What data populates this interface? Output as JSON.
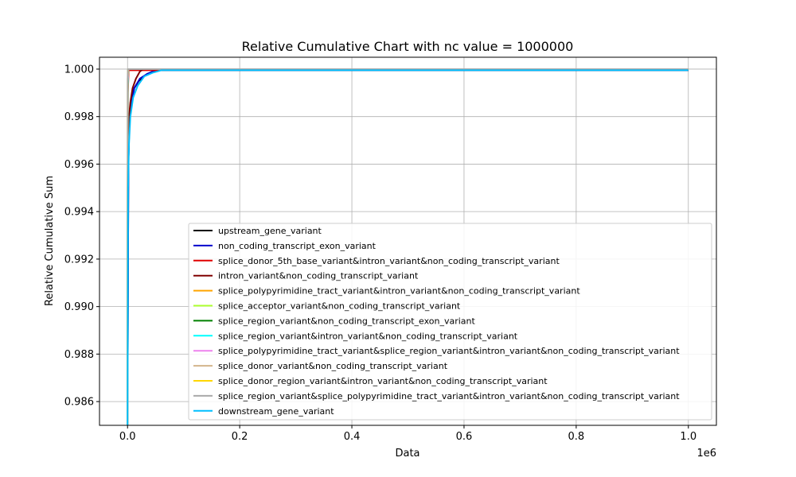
{
  "chart_data": {
    "type": "line",
    "title": "Relative Cumulative Chart with nc value = 1000000",
    "xlabel": "Data",
    "ylabel": "Relative Cumulative Sum",
    "x_offset_label": "1e6",
    "xlim": [
      -50000,
      1050000
    ],
    "ylim": [
      0.985,
      1.0005
    ],
    "xticks": [
      0,
      200000,
      400000,
      600000,
      800000,
      1000000
    ],
    "xtick_labels": [
      "0.0",
      "0.2",
      "0.4",
      "0.6",
      "0.8",
      "1.0"
    ],
    "yticks": [
      0.986,
      0.988,
      0.99,
      0.992,
      0.994,
      0.996,
      0.998,
      1.0
    ],
    "ytick_labels": [
      "0.986",
      "0.988",
      "0.990",
      "0.992",
      "0.994",
      "0.996",
      "0.998",
      "1.000"
    ],
    "grid": true,
    "legend_position": "lower-right",
    "series": [
      {
        "name": "upstream_gene_variant",
        "color": "#000000",
        "points": [
          [
            0,
            0.985
          ],
          [
            1500,
            0.996
          ],
          [
            3000,
            0.9975
          ],
          [
            6000,
            0.9985
          ],
          [
            12000,
            0.9992
          ],
          [
            20000,
            0.9995
          ],
          [
            35000,
            0.9998
          ],
          [
            55000,
            0.99995
          ],
          [
            70000,
            0.99995
          ],
          [
            1000000,
            0.99995
          ]
        ]
      },
      {
        "name": "non_coding_transcript_exon_variant",
        "color": "#0000cd",
        "points": [
          [
            0,
            0.985
          ],
          [
            1500,
            0.996
          ],
          [
            3000,
            0.9975
          ],
          [
            6000,
            0.9985
          ],
          [
            12000,
            0.9992
          ],
          [
            22000,
            0.9996
          ],
          [
            35000,
            0.9998
          ],
          [
            50000,
            0.99995
          ],
          [
            60000,
            0.99995
          ],
          [
            1000000,
            0.99995
          ]
        ]
      },
      {
        "name": "splice_donor_5th_base_variant&intron_variant&non_coding_transcript_variant",
        "color": "#e00000",
        "points": [
          [
            0,
            0.985
          ],
          [
            500,
            0.999
          ],
          [
            2000,
            0.99995
          ],
          [
            1000000,
            0.99995
          ]
        ]
      },
      {
        "name": "intron_variant&non_coding_transcript_variant",
        "color": "#800000",
        "points": [
          [
            0,
            0.985
          ],
          [
            800,
            0.996
          ],
          [
            2000,
            0.9978
          ],
          [
            5000,
            0.9986
          ],
          [
            9000,
            0.9992
          ],
          [
            15000,
            0.9996
          ],
          [
            22000,
            0.9999
          ],
          [
            28000,
            1.0
          ],
          [
            1000000,
            1.0
          ]
        ]
      },
      {
        "name": "splice_polypyrimidine_tract_variant&intron_variant&non_coding_transcript_variant",
        "color": "#ffa500",
        "points": [
          [
            0,
            0.985
          ],
          [
            500,
            0.9992
          ],
          [
            1500,
            1.0
          ],
          [
            1000000,
            1.0
          ]
        ]
      },
      {
        "name": "splice_acceptor_variant&non_coding_transcript_variant",
        "color": "#adff2f",
        "points": [
          [
            0,
            0.985
          ],
          [
            500,
            0.9995
          ],
          [
            1000,
            1.0
          ],
          [
            1000000,
            1.0
          ]
        ]
      },
      {
        "name": "splice_region_variant&non_coding_transcript_exon_variant",
        "color": "#008000",
        "points": [
          [
            0,
            0.985
          ],
          [
            500,
            0.9993
          ],
          [
            1500,
            1.0
          ],
          [
            1000000,
            1.0
          ]
        ]
      },
      {
        "name": "splice_region_variant&intron_variant&non_coding_transcript_variant",
        "color": "#00ffff",
        "points": [
          [
            0,
            0.985
          ],
          [
            500,
            0.9993
          ],
          [
            1500,
            1.0
          ],
          [
            1000000,
            1.0
          ]
        ]
      },
      {
        "name": "splice_polypyrimidine_tract_variant&splice_region_variant&intron_variant&non_coding_transcript_variant",
        "color": "#ee82ee",
        "points": [
          [
            0,
            0.985
          ],
          [
            500,
            0.9995
          ],
          [
            1500,
            1.0
          ],
          [
            1000000,
            1.0
          ]
        ]
      },
      {
        "name": "splice_donor_variant&non_coding_transcript_variant",
        "color": "#d2b48c",
        "points": [
          [
            0,
            0.985
          ],
          [
            300,
            0.9996
          ],
          [
            1000,
            1.0
          ],
          [
            1000000,
            1.0
          ]
        ]
      },
      {
        "name": "splice_donor_region_variant&intron_variant&non_coding_transcript_variant",
        "color": "#ffd700",
        "points": [
          [
            0,
            0.985
          ],
          [
            300,
            0.9996
          ],
          [
            1000,
            1.0
          ],
          [
            1000000,
            1.0
          ]
        ]
      },
      {
        "name": "splice_region_variant&splice_polypyrimidine_tract_variant&intron_variant&non_coding_transcript_variant",
        "color": "#a9a9a9",
        "points": [
          [
            0,
            0.985
          ],
          [
            300,
            0.9997
          ],
          [
            800,
            1.0
          ],
          [
            1000000,
            1.0
          ]
        ]
      },
      {
        "name": "downstream_gene_variant",
        "color": "#00bfff",
        "points": [
          [
            0,
            0.985
          ],
          [
            1000,
            0.995
          ],
          [
            2500,
            0.9968
          ],
          [
            5000,
            0.998
          ],
          [
            10000,
            0.9988
          ],
          [
            18000,
            0.9993
          ],
          [
            30000,
            0.9997
          ],
          [
            45000,
            0.99985
          ],
          [
            60000,
            0.99995
          ],
          [
            1000000,
            0.99995
          ]
        ]
      }
    ]
  }
}
